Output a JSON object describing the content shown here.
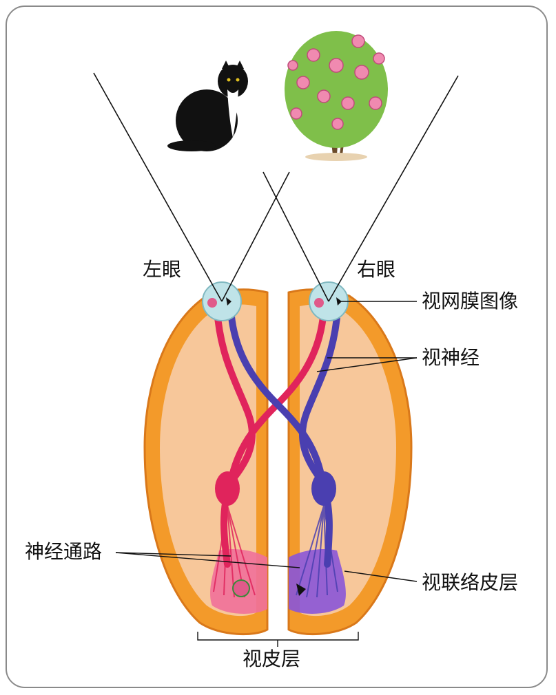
{
  "labels": {
    "left_eye": "左眼",
    "right_eye": "右眼",
    "retina_image": "视网膜图像",
    "optic_nerve": "视神经",
    "neural_pathway": "神经通路",
    "visual_association_cortex": "视联络皮层",
    "visual_cortex": "视皮层"
  },
  "objects": {
    "left_object": "cat",
    "right_object": "rose-bush"
  },
  "colors": {
    "left_pathway": "#e0245c",
    "right_pathway": "#4a3fb0",
    "cortex_outer": "#f39a2a",
    "cortex_inner": "#f7c79a",
    "eye": "#bfe3e8",
    "frame": "#8a8a8a"
  }
}
